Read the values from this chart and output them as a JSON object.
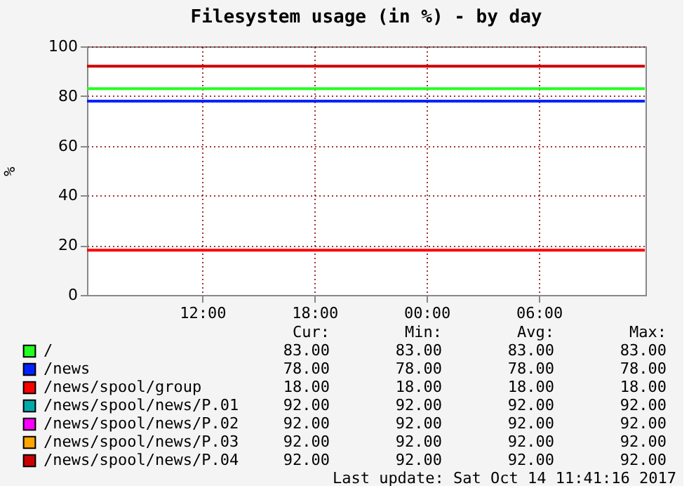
{
  "chart_data": {
    "type": "line",
    "title": "Filesystem usage (in %) - by day",
    "ylabel": "%",
    "x": [
      "2017-10-13T05:50",
      "2017-10-14T11:40"
    ],
    "xlim": [
      "2017-10-13T05:50",
      "2017-10-14T11:42"
    ],
    "xticks": [
      {
        "value": "2017-10-13T12:00",
        "label": "12:00"
      },
      {
        "value": "2017-10-13T18:00",
        "label": "18:00"
      },
      {
        "value": "2017-10-14T00:00",
        "label": "00:00"
      },
      {
        "value": "2017-10-14T06:00",
        "label": "06:00"
      }
    ],
    "ylim": [
      0,
      100
    ],
    "yticks": [
      0,
      20,
      40,
      60,
      80,
      100
    ],
    "grid": true,
    "legend": "bottom",
    "marker": "none",
    "line_style": "solid",
    "series": [
      {
        "name": "/",
        "color": "#22ff22",
        "values": [
          83,
          83
        ]
      },
      {
        "name": "/news",
        "color": "#0022ff",
        "values": [
          78,
          78
        ]
      },
      {
        "name": "/news/spool/group",
        "color": "#ff0000",
        "values": [
          18,
          18
        ]
      },
      {
        "name": "/news/spool/news/P.01",
        "color": "#00aaaa",
        "values": [
          null,
          null
        ]
      },
      {
        "name": "/news/spool/news/P.02",
        "color": "#ff00ff",
        "values": [
          null,
          null
        ]
      },
      {
        "name": "/news/spool/news/P.03",
        "color": "#ffa500",
        "values": [
          null,
          null
        ]
      },
      {
        "name": "/news/spool/news/P.04",
        "color": "#cc0000",
        "values": [
          92,
          92
        ]
      }
    ],
    "annotations": [
      "Cur:",
      "Min:",
      "Avg:",
      "Max:",
      "83.00",
      "83.00",
      "83.00",
      "83.00",
      "78.00",
      "78.00",
      "78.00",
      "78.00",
      "18.00",
      "18.00",
      "18.00",
      "18.00",
      "92.00",
      "92.00",
      "92.00",
      "92.00",
      "92.00",
      "92.00",
      "92.00",
      "92.00",
      "92.00",
      "92.00",
      "92.00",
      "92.00",
      "92.00",
      "92.00",
      "92.00",
      "92.00",
      "Last update: Sat Oct 14 11:41:16 2017"
    ]
  }
}
